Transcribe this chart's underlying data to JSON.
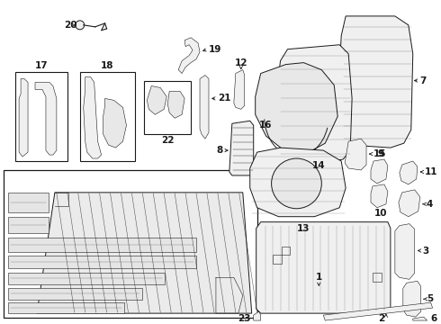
{
  "bg_color": "#ffffff",
  "line_color": "#1a1a1a",
  "fig_width": 4.9,
  "fig_height": 3.6,
  "dpi": 100,
  "label_fontsize": 7.5,
  "label_fontweight": "bold"
}
